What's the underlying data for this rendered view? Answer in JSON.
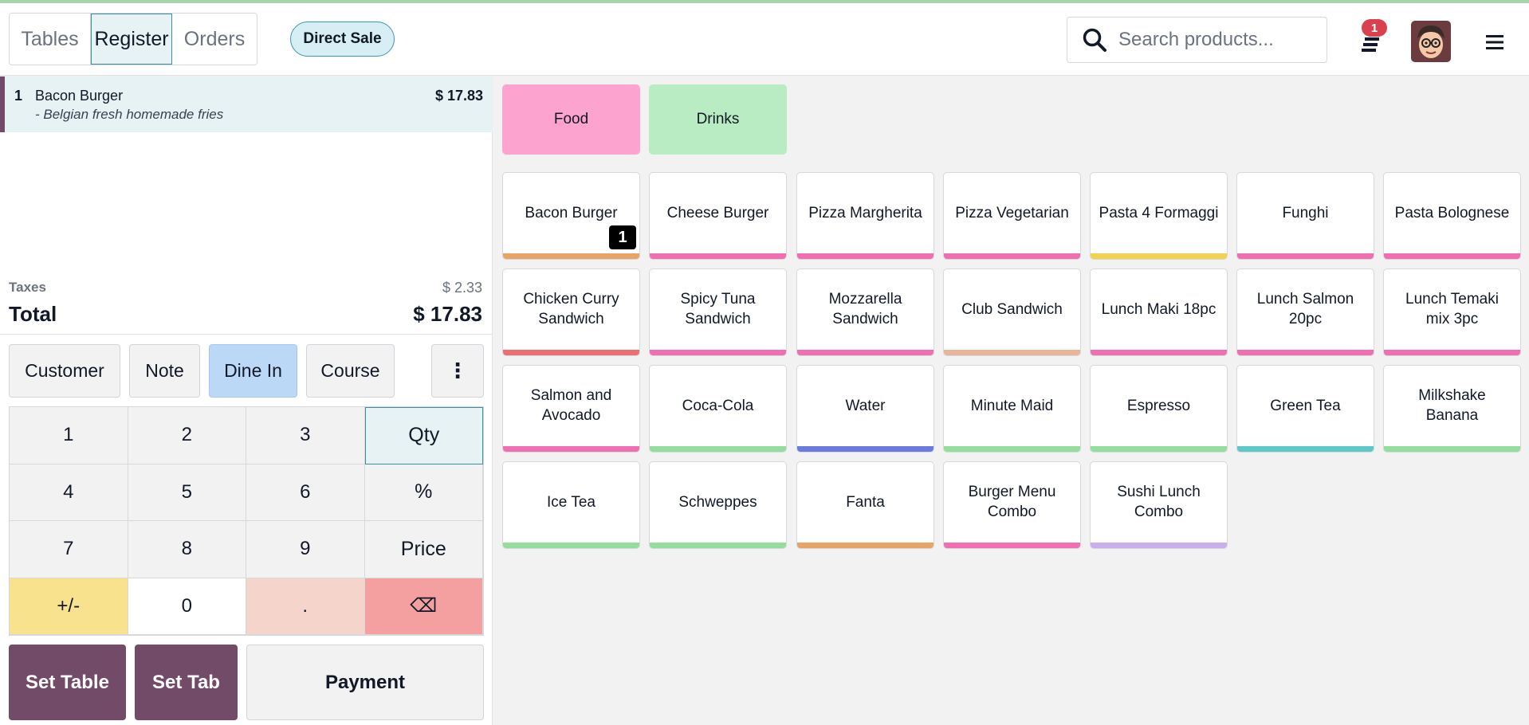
{
  "nav": {
    "tabs": [
      {
        "label": "Tables"
      },
      {
        "label": "Register"
      },
      {
        "label": "Orders"
      }
    ],
    "direct_sale": "Direct Sale"
  },
  "header": {
    "search_placeholder": "Search products...",
    "orders_badge": "1"
  },
  "order": {
    "lines": [
      {
        "qty": "1",
        "name": "Bacon Burger",
        "note": "- Belgian fresh homemade fries",
        "price": "$ 17.83"
      }
    ],
    "taxes_label": "Taxes",
    "taxes_value": "$ 2.33",
    "total_label": "Total",
    "total_value": "$ 17.83"
  },
  "controls": {
    "customer": "Customer",
    "note": "Note",
    "dine_in": "Dine In",
    "course": "Course",
    "more": "⋮"
  },
  "numpad": {
    "k1": "1",
    "k2": "2",
    "k3": "3",
    "qty": "Qty",
    "k4": "4",
    "k5": "5",
    "k6": "6",
    "percent": "%",
    "k7": "7",
    "k8": "8",
    "k9": "9",
    "price": "Price",
    "sign": "+/-",
    "k0": "0",
    "dot": ".",
    "backspace": "⌫"
  },
  "actions": {
    "set_table": "Set Table",
    "set_tab": "Set Tab",
    "payment": "Payment"
  },
  "categories": [
    {
      "label": "Food",
      "color": "#fca3cf"
    },
    {
      "label": "Drinks",
      "color": "#b9ecc2"
    }
  ],
  "products": [
    {
      "name": "Bacon Burger",
      "color": "#e8a465",
      "qty": "1"
    },
    {
      "name": "Cheese Burger",
      "color": "#f06fb1"
    },
    {
      "name": "Pizza Margherita",
      "color": "#f06fb1"
    },
    {
      "name": "Pizza Vegetarian",
      "color": "#f06fb1"
    },
    {
      "name": "Pasta 4 Formaggi",
      "color": "#f2d34f"
    },
    {
      "name": "Funghi",
      "color": "#f06fb1"
    },
    {
      "name": "Pasta Bolognese",
      "color": "#f06fb1"
    },
    {
      "name": "Chicken Curry Sandwich",
      "color": "#ee6f6f"
    },
    {
      "name": "Spicy Tuna Sandwich",
      "color": "#f06fb1"
    },
    {
      "name": "Mozzarella Sandwich",
      "color": "#f06fb1"
    },
    {
      "name": "Club Sandwich",
      "color": "#e8b59a"
    },
    {
      "name": "Lunch Maki 18pc",
      "color": "#f06fb1"
    },
    {
      "name": "Lunch Salmon 20pc",
      "color": "#f06fb1"
    },
    {
      "name": "Lunch Temaki mix 3pc",
      "color": "#f06fb1"
    },
    {
      "name": "Salmon and Avocado",
      "color": "#f06fb1"
    },
    {
      "name": "Coca-Cola",
      "color": "#93dd9d"
    },
    {
      "name": "Water",
      "color": "#6a7bdf"
    },
    {
      "name": "Minute Maid",
      "color": "#93dd9d"
    },
    {
      "name": "Espresso",
      "color": "#93dd9d"
    },
    {
      "name": "Green Tea",
      "color": "#5cc8c8"
    },
    {
      "name": "Milkshake Banana",
      "color": "#93dd9d"
    },
    {
      "name": "Ice Tea",
      "color": "#93dd9d"
    },
    {
      "name": "Schweppes",
      "color": "#93dd9d"
    },
    {
      "name": "Fanta",
      "color": "#e8a465"
    },
    {
      "name": "Burger Menu Combo",
      "color": "#f06fb1"
    },
    {
      "name": "Sushi Lunch Combo",
      "color": "#c9aef0"
    }
  ]
}
